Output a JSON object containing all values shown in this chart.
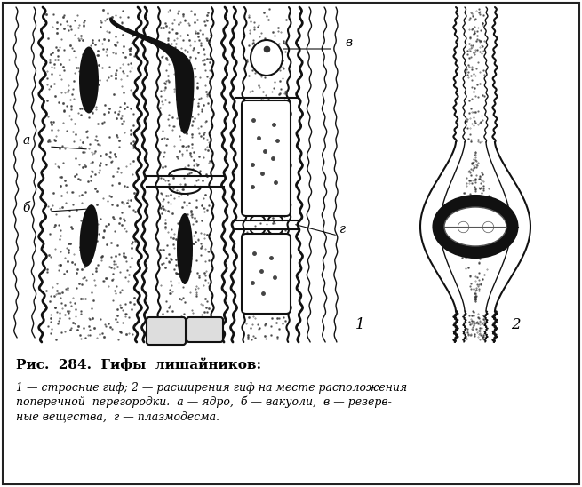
{
  "title": "Рис.  284.  Гифы  лишайников:",
  "caption_line1": "1 — стросние гиф; 2 — расширения гиф на месте расположения",
  "caption_line2": "поперечной  перегородки.  а — ядро,  б — вакуоли,  в — резерв-",
  "caption_line3": "ные вещества,  г — плазмодесма.",
  "bg_color": "#ffffff",
  "text_color": "#000000",
  "label_a": "а",
  "label_b": "б",
  "label_v": "в",
  "label_g": "г",
  "label_1": "1",
  "label_2": "2",
  "fig_width": 6.55,
  "fig_height": 5.48,
  "dpi": 100
}
